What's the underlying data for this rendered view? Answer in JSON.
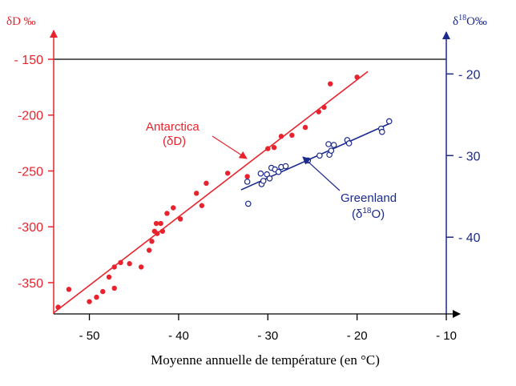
{
  "chart_data": {
    "type": "scatter",
    "xlabel": "Moyenne annuelle de température  (en °C)",
    "x_range": [
      -54,
      -10
    ],
    "x_ticks": [
      -50,
      -40,
      -30,
      -20,
      -10
    ],
    "x_tick_labels": [
      "- 50",
      "- 40",
      "- 30",
      "- 20",
      "- 10"
    ],
    "left_axis": {
      "label": "δD ‰",
      "range": [
        -378,
        -150
      ],
      "ticks": [
        -150,
        -200,
        -250,
        -300,
        -350
      ],
      "tick_labels": [
        "- 150",
        "-200",
        "-250",
        "-300",
        "-350"
      ],
      "color": "#e8232d"
    },
    "right_axis": {
      "label_main": "δ",
      "label_sup": "18",
      "label_rest": "O‰",
      "range": [
        -49.4,
        -18.2
      ],
      "ticks": [
        -20,
        -30,
        -40
      ],
      "tick_labels": [
        "- 20",
        "- 30",
        "- 40"
      ],
      "color": "#1b2a8c"
    },
    "series": [
      {
        "name": "Antarctica",
        "sub": "(δD)",
        "axis": "left",
        "marker": "filled-circle",
        "color": "#e8232d",
        "points": [
          [
            -53.5,
            -372
          ],
          [
            -52.3,
            -356
          ],
          [
            -50.0,
            -367
          ],
          [
            -49.2,
            -363
          ],
          [
            -48.5,
            -358
          ],
          [
            -47.8,
            -345
          ],
          [
            -47.2,
            -336
          ],
          [
            -47.2,
            -355
          ],
          [
            -46.5,
            -332
          ],
          [
            -45.5,
            -333
          ],
          [
            -44.2,
            -336
          ],
          [
            -43.3,
            -321
          ],
          [
            -43.0,
            -313
          ],
          [
            -42.7,
            -304
          ],
          [
            -42.4,
            -306
          ],
          [
            -42.5,
            -297
          ],
          [
            -42.0,
            -297
          ],
          [
            -41.8,
            -304
          ],
          [
            -41.3,
            -288
          ],
          [
            -40.6,
            -283
          ],
          [
            -39.8,
            -293
          ],
          [
            -38.0,
            -270
          ],
          [
            -37.4,
            -281
          ],
          [
            -36.9,
            -261
          ],
          [
            -34.5,
            -252
          ],
          [
            -32.3,
            -255
          ],
          [
            -30.0,
            -230
          ],
          [
            -29.3,
            -229
          ],
          [
            -28.5,
            -219
          ],
          [
            -27.3,
            -218
          ],
          [
            -25.8,
            -211
          ],
          [
            -24.3,
            -197
          ],
          [
            -23.7,
            -193
          ],
          [
            -23.0,
            -172
          ],
          [
            -20.0,
            -166
          ]
        ],
        "fit": [
          [
            -54,
            -377
          ],
          [
            -18.8,
            -161
          ]
        ]
      },
      {
        "name": "Greenland",
        "sub_pre": "(δ",
        "sub_sup": "18",
        "sub_post": "O)",
        "axis": "right",
        "marker": "open-circle",
        "color": "#1b2a8c",
        "points": [
          [
            -32.3,
            -33.2
          ],
          [
            -32.2,
            -35.9
          ],
          [
            -30.8,
            -32.2
          ],
          [
            -30.7,
            -33.5
          ],
          [
            -30.5,
            -33.1
          ],
          [
            -30.1,
            -32.3
          ],
          [
            -29.8,
            -32.8
          ],
          [
            -29.6,
            -31.5
          ],
          [
            -29.2,
            -31.7
          ],
          [
            -28.8,
            -32.0
          ],
          [
            -28.5,
            -31.4
          ],
          [
            -28.0,
            -31.3
          ],
          [
            -25.5,
            -30.6
          ],
          [
            -24.2,
            -30.0
          ],
          [
            -23.2,
            -28.6
          ],
          [
            -23.1,
            -29.9
          ],
          [
            -22.9,
            -29.4
          ],
          [
            -22.6,
            -28.7
          ],
          [
            -21.1,
            -28.1
          ],
          [
            -20.9,
            -28.5
          ],
          [
            -17.3,
            -26.7
          ],
          [
            -17.2,
            -27.1
          ],
          [
            -16.4,
            -25.8
          ]
        ],
        "fit": [
          [
            -33.0,
            -34.2
          ],
          [
            -16.2,
            -26.0
          ]
        ]
      }
    ],
    "annotations": {
      "antarctica_label": "Antarctica",
      "antarctica_sub": "(δD)",
      "greenland_label": "Greenland",
      "greenland_sub_pre": "(δ",
      "greenland_sub_sup": "18",
      "greenland_sub_post": "O)"
    }
  }
}
